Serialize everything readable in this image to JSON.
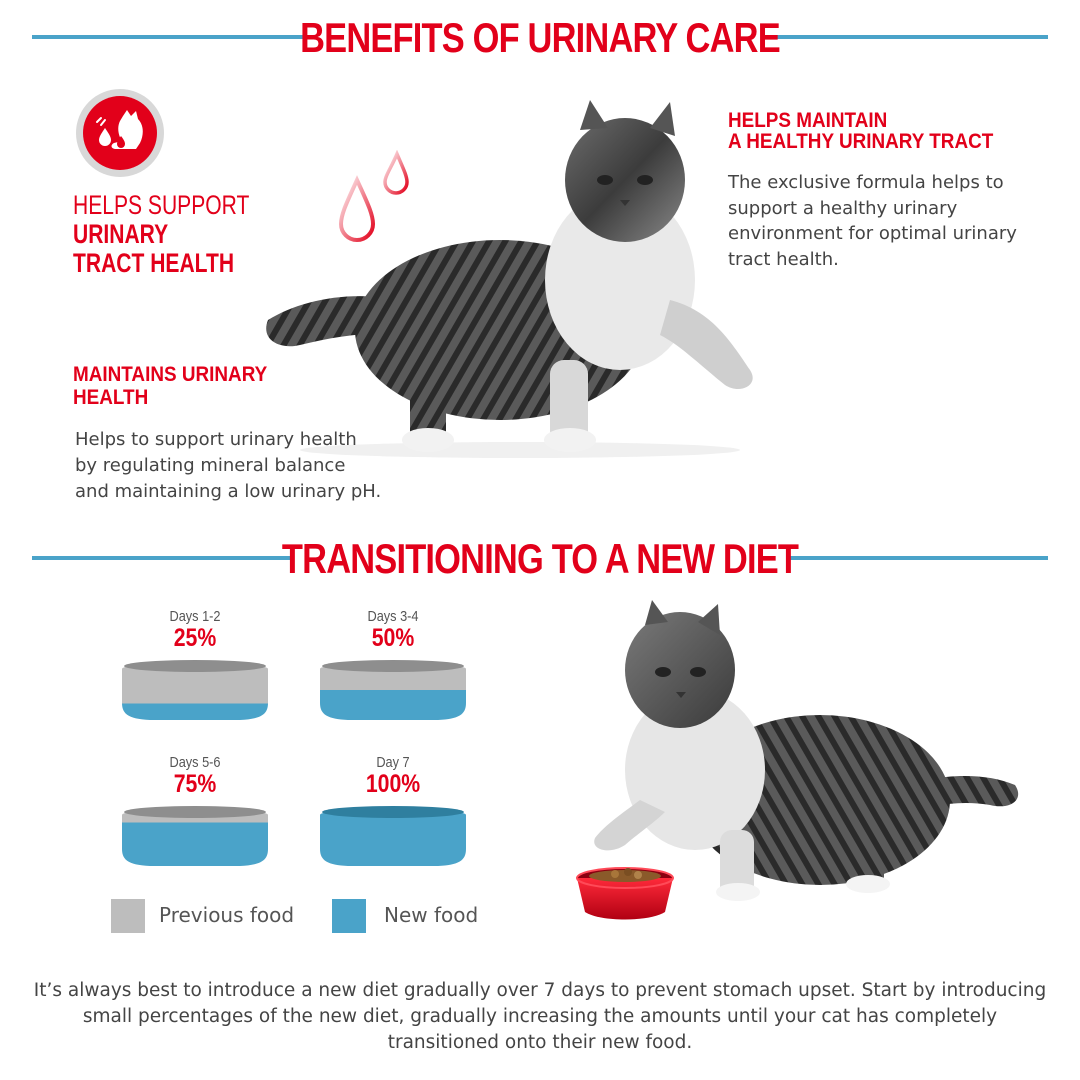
{
  "section1": {
    "title": "BENEFITS OF URINARY CARE"
  },
  "support_block": {
    "line1": "HELPS SUPPORT",
    "line2": "URINARY",
    "line3": "TRACT HEALTH"
  },
  "benefit_right": {
    "heading_line1": "HELPS MAINTAIN",
    "heading_line2": "A HEALTHY URINARY TRACT",
    "text_lines": [
      "The exclusive formula helps to",
      "support a healthy urinary",
      "environment for optimal urinary",
      "tract health."
    ]
  },
  "benefit_left": {
    "heading_line1": "MAINTAINS URINARY",
    "heading_line2": "HEALTH",
    "text_lines": [
      "Helps to support urinary health",
      "by regulating mineral balance",
      "and maintaining a low urinary pH."
    ]
  },
  "section2": {
    "title": "TRANSITIONING TO A NEW DIET"
  },
  "schedule": [
    {
      "days": "Days 1-2",
      "percent": "25%",
      "new_fraction": 0.25
    },
    {
      "days": "Days 3-4",
      "percent": "50%",
      "new_fraction": 0.5
    },
    {
      "days": "Days 5-6",
      "percent": "75%",
      "new_fraction": 0.75
    },
    {
      "days": "Day 7",
      "percent": "100%",
      "new_fraction": 1.0
    }
  ],
  "legend": {
    "previous": "Previous food",
    "new": "New food"
  },
  "colors": {
    "brand_red": "#e2001a",
    "rule_blue": "#4aa3c9",
    "new_food": "#4aa3c9",
    "previous_food": "#bdbdbd"
  },
  "footer_lines": [
    "It’s always best to introduce a new diet gradually over 7 days to prevent stomach upset. Start by introducing",
    "small percentages of the new diet, gradually increasing the amounts until your cat has completely",
    "transitioned onto their new food."
  ]
}
